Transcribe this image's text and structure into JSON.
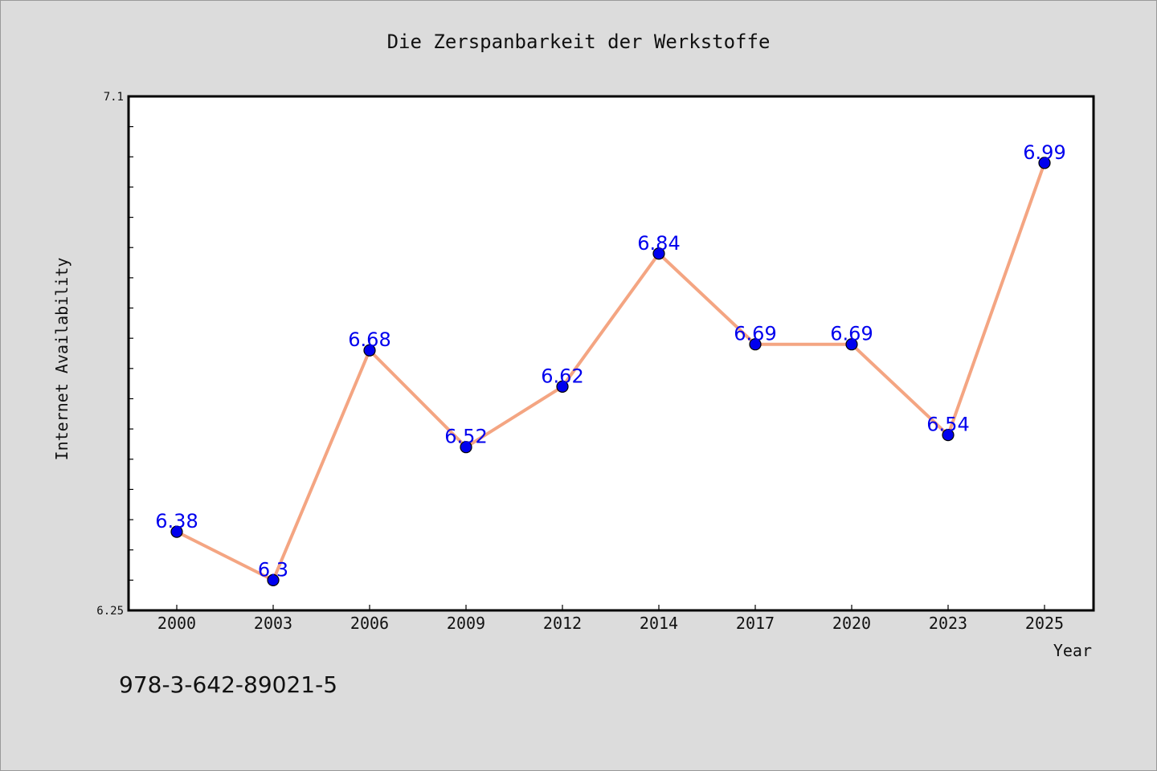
{
  "chart_data": {
    "type": "line",
    "title": "Die Zerspanbarkeit der Werkstoffe",
    "xlabel": "Year",
    "ylabel": "Internet Availability",
    "categories": [
      "2000",
      "2003",
      "2006",
      "2009",
      "2012",
      "2014",
      "2017",
      "2020",
      "2023",
      "2025"
    ],
    "series": [
      {
        "values": [
          6.38,
          6.3,
          6.68,
          6.52,
          6.62,
          6.84,
          6.69,
          6.69,
          6.54,
          6.99
        ],
        "labels": [
          "6.38",
          "6.3",
          "6.68",
          "6.52",
          "6.62",
          "6.84",
          "6.69",
          "6.69",
          "6.54",
          "6.99"
        ]
      }
    ],
    "ylim": [
      6.25,
      7.1
    ],
    "ytick_labels": [
      "6.25",
      "7.1"
    ],
    "grid": false,
    "legend": "none",
    "colors": {
      "line": "#f4a582",
      "marker": "#0000ee",
      "data_label": "#0000ee",
      "plot_bg": "#ffffff",
      "page_bg": "#dcdcdc"
    }
  },
  "footer": {
    "isbn": "978-3-642-89021-5"
  }
}
